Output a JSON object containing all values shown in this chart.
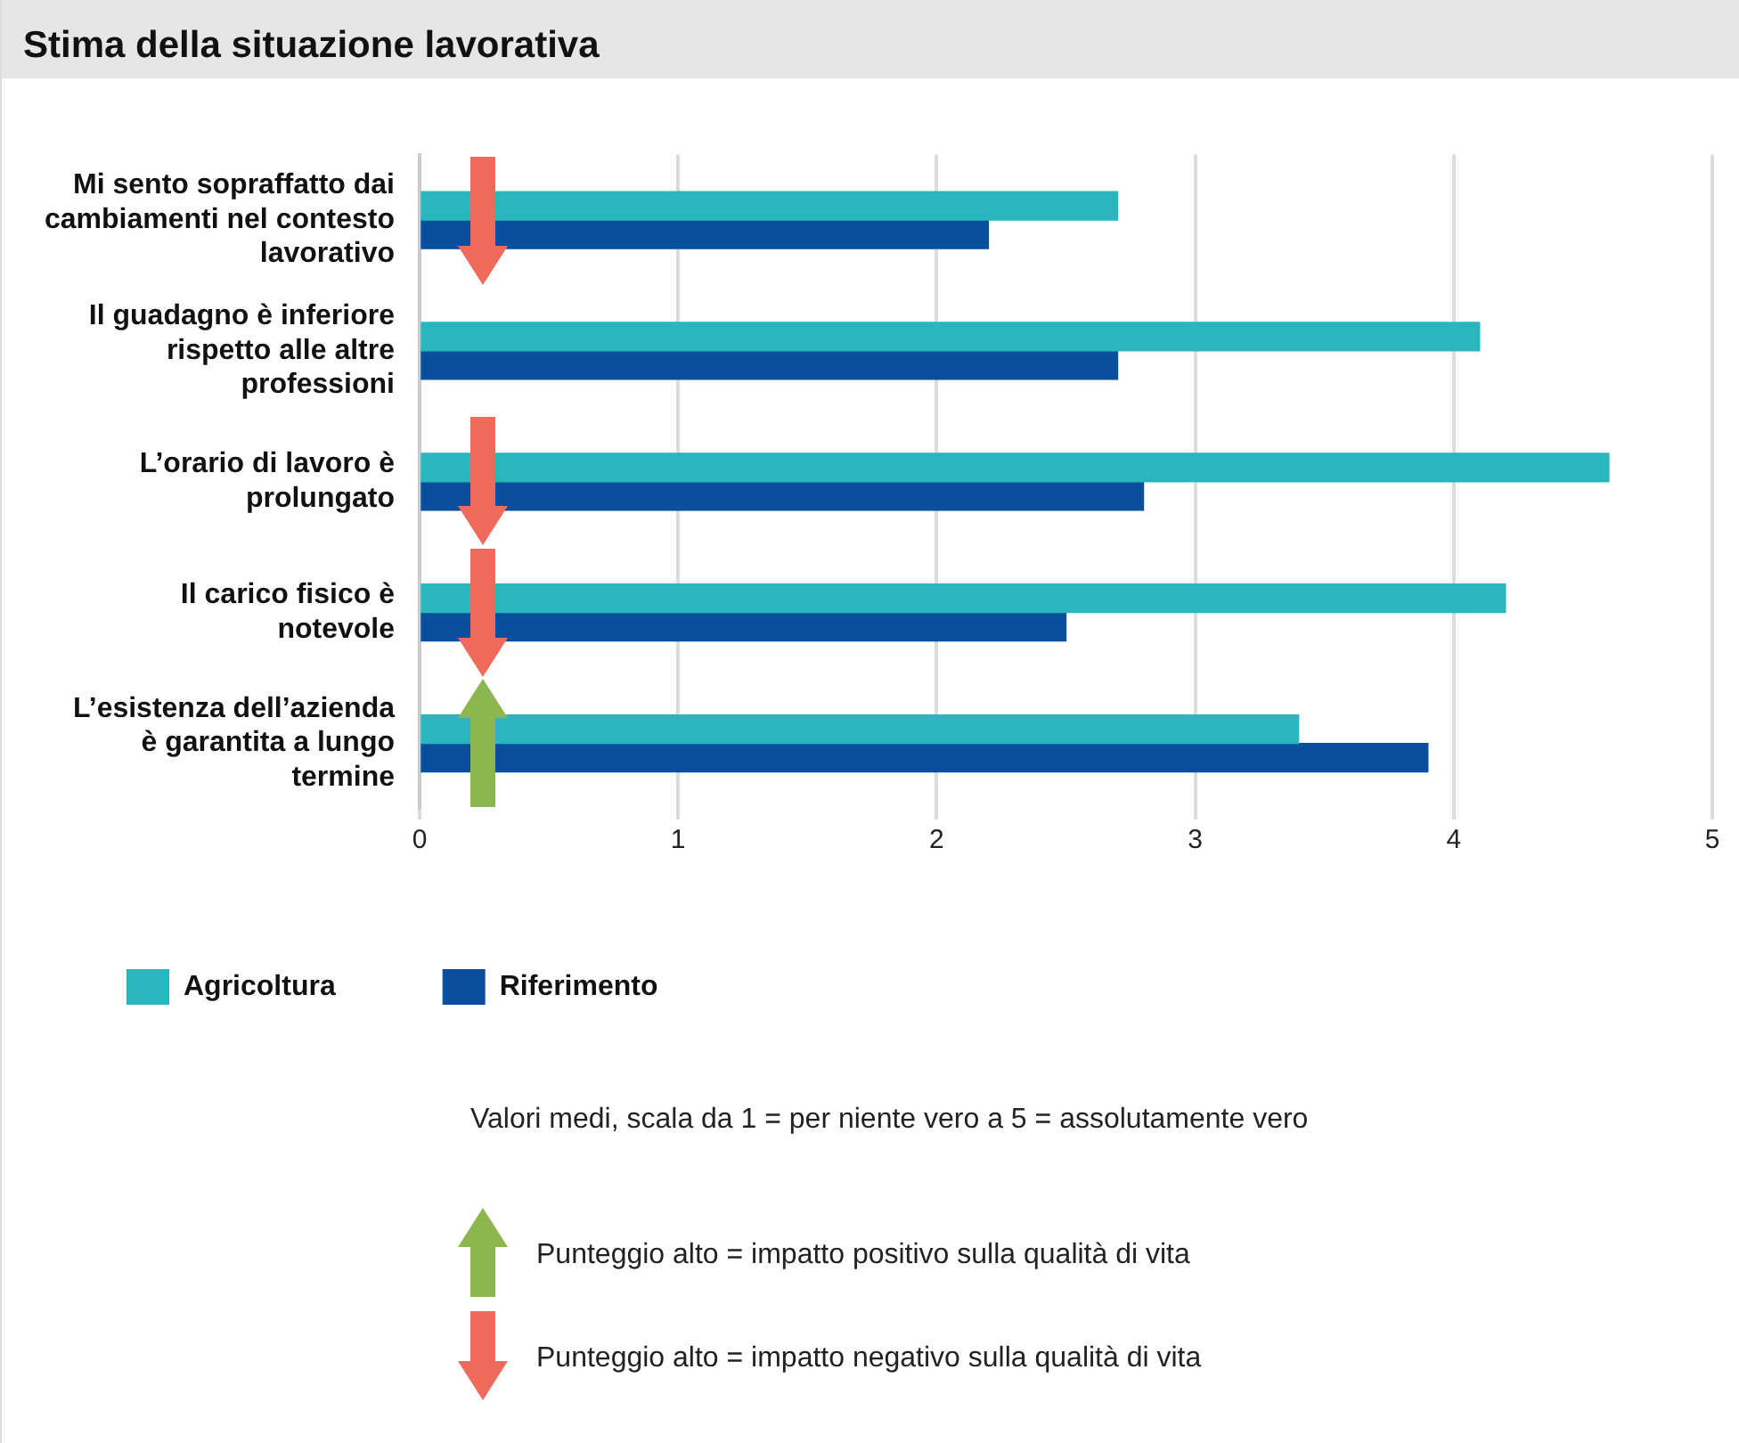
{
  "chart_data": {
    "type": "bar",
    "orientation": "horizontal",
    "title": "Stima della situazione lavorativa",
    "categories": [
      "Mi sento sopraffatto dai cambiamenti nel contesto lavorativo",
      "Il guadagno è inferiore rispetto alle altre professioni",
      "L’orario di lavoro è prolungato",
      "Il carico fisico è notevole",
      "L’esistenza dell’azienda è garantita a lungo termine"
    ],
    "series": [
      {
        "name": "Agricoltura",
        "color": "#2bb5bd",
        "values": [
          2.7,
          4.1,
          4.6,
          4.2,
          3.4
        ]
      },
      {
        "name": "Riferimento",
        "color": "#0a4f9c",
        "values": [
          2.2,
          2.7,
          2.8,
          2.5,
          3.9
        ]
      }
    ],
    "xlim": [
      0,
      5
    ],
    "xticks": [
      0,
      1,
      2,
      3,
      4,
      5
    ],
    "grid": "x",
    "legend": "bottom",
    "annotations": [
      "Valori medi,  scala da 1 = per niente vero a 5 = assolutamente vero",
      "Punteggio alto = impatto positivo sulla qualità di vita",
      "Punteggio alto = impatto negativo sulla qualità di vita"
    ]
  }
}
